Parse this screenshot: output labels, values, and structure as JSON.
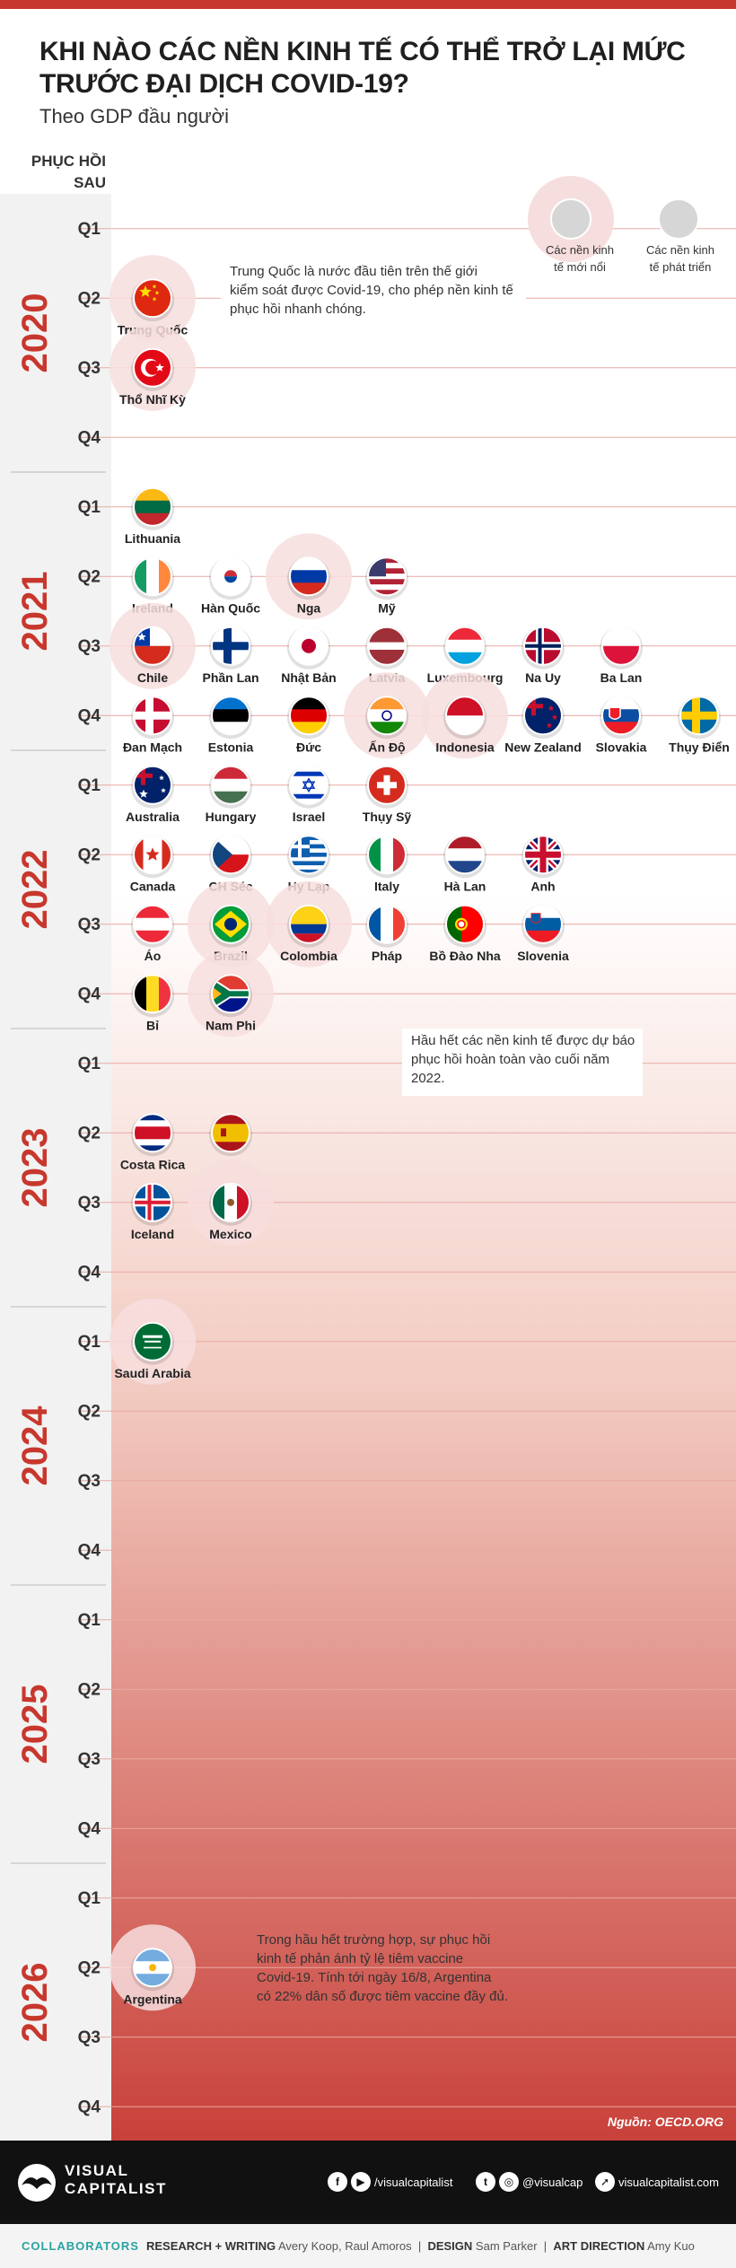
{
  "header": {
    "title": "KHI NÀO CÁC NỀN KINH TẾ CÓ THỂ TRỞ LẠI MỨC TRƯỚC ĐẠI DỊCH COVID-19?",
    "subtitle": "Theo GDP đầu người",
    "y_header": "PHỤC HỒI SAU"
  },
  "legend": {
    "emerging": "Các nền kinh tế mới nổi",
    "developed": "Các nền kinh tế phát triển"
  },
  "annotations": [
    "Trung Quốc là nước đầu tiên trên thế giới kiểm soát được Covid-19, cho phép nền kinh tế phục hồi nhanh chóng.",
    "Hầu hết các nền kinh tế được dự báo phục hồi hoàn toàn vào cuối năm 2022.",
    "Trong hầu hết trường hợp, sự phục hồi kinh tế phản ánh tỷ lệ tiêm vaccine Covid-19. Tính tới ngày 16/8, Argentina có 22% dân số được tiêm vaccine đầy đủ."
  ],
  "chart_data": {
    "type": "timeline",
    "years": [
      "2020",
      "2021",
      "2022",
      "2023",
      "2024",
      "2025",
      "2026"
    ],
    "quarters": [
      "Q1",
      "Q2",
      "Q3",
      "Q4"
    ],
    "points": [
      {
        "country": "Trung Quốc",
        "year": "2020",
        "quarter": "Q2",
        "group": "emerging",
        "flag": "china"
      },
      {
        "country": "Thổ Nhĩ Kỳ",
        "year": "2020",
        "quarter": "Q3",
        "group": "emerging",
        "flag": "turkey"
      },
      {
        "country": "Lithuania",
        "year": "2021",
        "quarter": "Q1",
        "group": "developed",
        "flag": "lithuania"
      },
      {
        "country": "Ireland",
        "year": "2021",
        "quarter": "Q2",
        "group": "developed",
        "flag": "ireland"
      },
      {
        "country": "Hàn Quốc",
        "year": "2021",
        "quarter": "Q2",
        "group": "developed",
        "flag": "korea"
      },
      {
        "country": "Nga",
        "year": "2021",
        "quarter": "Q2",
        "group": "emerging",
        "flag": "russia"
      },
      {
        "country": "Mỹ",
        "year": "2021",
        "quarter": "Q2",
        "group": "developed",
        "flag": "usa"
      },
      {
        "country": "Chile",
        "year": "2021",
        "quarter": "Q3",
        "group": "emerging",
        "flag": "chile"
      },
      {
        "country": "Phần Lan",
        "year": "2021",
        "quarter": "Q3",
        "group": "developed",
        "flag": "finland"
      },
      {
        "country": "Nhật Bản",
        "year": "2021",
        "quarter": "Q3",
        "group": "developed",
        "flag": "japan"
      },
      {
        "country": "Latvia",
        "year": "2021",
        "quarter": "Q3",
        "group": "developed",
        "flag": "latvia"
      },
      {
        "country": "Luxembourg",
        "year": "2021",
        "quarter": "Q3",
        "group": "developed",
        "flag": "luxembourg"
      },
      {
        "country": "Na Uy",
        "year": "2021",
        "quarter": "Q3",
        "group": "developed",
        "flag": "norway"
      },
      {
        "country": "Ba Lan",
        "year": "2021",
        "quarter": "Q3",
        "group": "developed",
        "flag": "poland"
      },
      {
        "country": "Đan Mạch",
        "year": "2021",
        "quarter": "Q4",
        "group": "developed",
        "flag": "denmark"
      },
      {
        "country": "Estonia",
        "year": "2021",
        "quarter": "Q4",
        "group": "developed",
        "flag": "estonia"
      },
      {
        "country": "Đức",
        "year": "2021",
        "quarter": "Q4",
        "group": "developed",
        "flag": "germany"
      },
      {
        "country": "Ấn Độ",
        "year": "2021",
        "quarter": "Q4",
        "group": "emerging",
        "flag": "india"
      },
      {
        "country": "Indonesia",
        "year": "2021",
        "quarter": "Q4",
        "group": "emerging",
        "flag": "indonesia"
      },
      {
        "country": "New Zealand",
        "year": "2021",
        "quarter": "Q4",
        "group": "developed",
        "flag": "newzealand"
      },
      {
        "country": "Slovakia",
        "year": "2021",
        "quarter": "Q4",
        "group": "developed",
        "flag": "slovakia"
      },
      {
        "country": "Thụy Điển",
        "year": "2021",
        "quarter": "Q4",
        "group": "developed",
        "flag": "sweden"
      },
      {
        "country": "Australia",
        "year": "2022",
        "quarter": "Q1",
        "group": "developed",
        "flag": "australia"
      },
      {
        "country": "Hungary",
        "year": "2022",
        "quarter": "Q1",
        "group": "developed",
        "flag": "hungary"
      },
      {
        "country": "Israel",
        "year": "2022",
        "quarter": "Q1",
        "group": "developed",
        "flag": "israel"
      },
      {
        "country": "Thụy Sỹ",
        "year": "2022",
        "quarter": "Q1",
        "group": "developed",
        "flag": "switzerland"
      },
      {
        "country": "Canada",
        "year": "2022",
        "quarter": "Q2",
        "group": "developed",
        "flag": "canada"
      },
      {
        "country": "CH Séc",
        "year": "2022",
        "quarter": "Q2",
        "group": "developed",
        "flag": "czech"
      },
      {
        "country": "Hy Lạp",
        "year": "2022",
        "quarter": "Q2",
        "group": "developed",
        "flag": "greece"
      },
      {
        "country": "Italy",
        "year": "2022",
        "quarter": "Q2",
        "group": "developed",
        "flag": "italy"
      },
      {
        "country": "Hà Lan",
        "year": "2022",
        "quarter": "Q2",
        "group": "developed",
        "flag": "netherlands"
      },
      {
        "country": "Anh",
        "year": "2022",
        "quarter": "Q2",
        "group": "developed",
        "flag": "uk"
      },
      {
        "country": "Áo",
        "year": "2022",
        "quarter": "Q3",
        "group": "developed",
        "flag": "austria"
      },
      {
        "country": "Brazil",
        "year": "2022",
        "quarter": "Q3",
        "group": "emerging",
        "flag": "brazil"
      },
      {
        "country": "Colombia",
        "year": "2022",
        "quarter": "Q3",
        "group": "emerging",
        "flag": "colombia"
      },
      {
        "country": "Pháp",
        "year": "2022",
        "quarter": "Q3",
        "group": "developed",
        "flag": "france"
      },
      {
        "country": "Bồ Đào Nha",
        "year": "2022",
        "quarter": "Q3",
        "group": "developed",
        "flag": "portugal"
      },
      {
        "country": "Slovenia",
        "year": "2022",
        "quarter": "Q3",
        "group": "developed",
        "flag": "slovenia"
      },
      {
        "country": "Bỉ",
        "year": "2022",
        "quarter": "Q4",
        "group": "developed",
        "flag": "belgium"
      },
      {
        "country": "Nam Phi",
        "year": "2022",
        "quarter": "Q4",
        "group": "emerging",
        "flag": "southafrica"
      },
      {
        "country": "Costa Rica",
        "year": "2023",
        "quarter": "Q2",
        "group": "developed",
        "flag": "costarica"
      },
      {
        "country": "Tây Ban Nha",
        "year": "2023",
        "quarter": "Q2",
        "group": "developed",
        "flag": "spain"
      },
      {
        "country": "Iceland",
        "year": "2023",
        "quarter": "Q3",
        "group": "developed",
        "flag": "iceland"
      },
      {
        "country": "Mexico",
        "year": "2023",
        "quarter": "Q3",
        "group": "emerging",
        "flag": "mexico"
      },
      {
        "country": "Saudi Arabia",
        "year": "2024",
        "quarter": "Q1",
        "group": "emerging",
        "flag": "saudi"
      },
      {
        "country": "Argentina",
        "year": "2026",
        "quarter": "Q2",
        "group": "emerging",
        "flag": "argentina"
      }
    ]
  },
  "source": "Nguồn: OECD.ORG",
  "footer": {
    "brand_line1": "VISUAL",
    "brand_line2": "CAPITALIST",
    "facebook": "/visualcapitalist",
    "social": "@visualcap",
    "website": "visualcapitalist.com"
  },
  "credits": {
    "collab": "COLLABORATORS",
    "research_label": "RESEARCH + WRITING",
    "research": "Avery Koop, Raul Amoros",
    "design_label": "DESIGN",
    "design": "Sam Parker",
    "art_label": "ART DIRECTION",
    "art": "Amy Kuo"
  },
  "colors": {
    "accent": "#c8372d",
    "gradient_top": "#ffffff",
    "gradient_bottom": "#c8413a",
    "band": "#f2f2f2"
  }
}
